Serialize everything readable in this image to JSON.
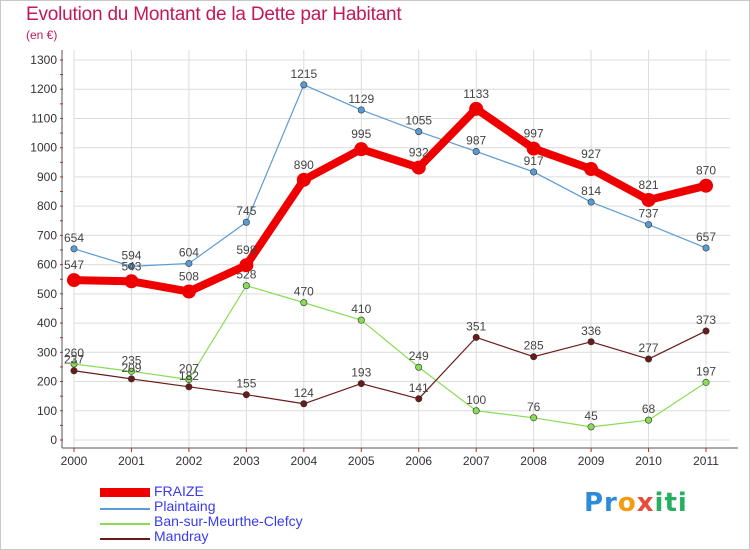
{
  "title": "Evolution du Montant de la Dette par Habitant",
  "subtitle": "(en €)",
  "logo": {
    "p": "Pr",
    "o": "o",
    "x": "x",
    "iti": "iti"
  },
  "chart_data": {
    "type": "line",
    "title": "Evolution du Montant de la Dette par Habitant",
    "ylabel": "(en €)",
    "xlabel": "",
    "ylim": [
      0,
      1300
    ],
    "yticks": [
      0,
      100,
      200,
      300,
      400,
      500,
      600,
      700,
      800,
      900,
      1000,
      1100,
      1200,
      1300
    ],
    "grid": true,
    "categories": [
      "2000",
      "2001",
      "2002",
      "2003",
      "2004",
      "2005",
      "2006",
      "2007",
      "2008",
      "2009",
      "2010",
      "2011"
    ],
    "series": [
      {
        "name": "FRAIZE",
        "color": "#ee0000",
        "emphasis": true,
        "values": [
          547,
          543,
          508,
          598,
          890,
          995,
          932,
          1133,
          997,
          927,
          821,
          870
        ]
      },
      {
        "name": "Plaintaing",
        "color": "#5b9bd5",
        "emphasis": false,
        "values": [
          654,
          594,
          604,
          745,
          1215,
          1129,
          1055,
          987,
          917,
          814,
          737,
          657
        ]
      },
      {
        "name": "Ban-sur-Meurthe-Clefcy",
        "color": "#88dd55",
        "emphasis": false,
        "values": [
          260,
          235,
          207,
          528,
          470,
          410,
          249,
          100,
          76,
          45,
          68,
          197
        ]
      },
      {
        "name": "Mandray",
        "color": "#6b1a1a",
        "emphasis": false,
        "values": [
          237,
          209,
          182,
          155,
          124,
          193,
          141,
          351,
          285,
          336,
          277,
          373
        ]
      }
    ]
  }
}
